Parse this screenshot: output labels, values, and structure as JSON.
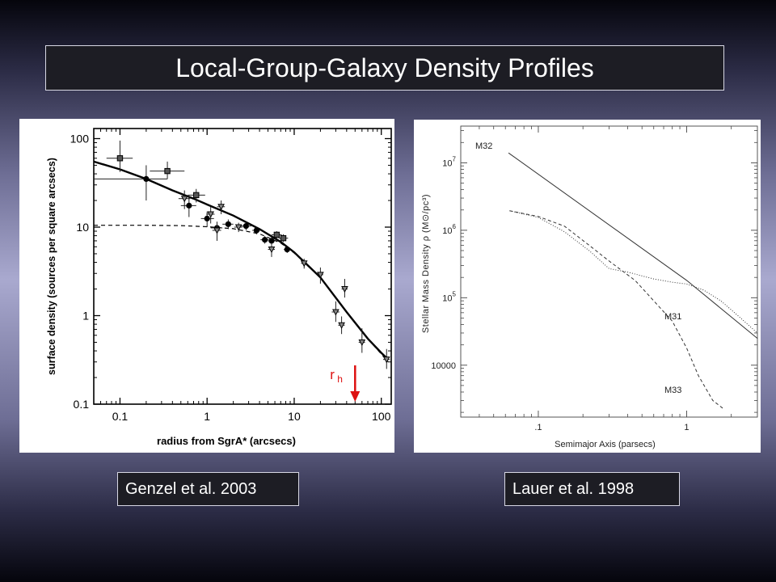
{
  "slide": {
    "title": "Local-Group-Galaxy Density Profiles"
  },
  "captions": {
    "left": "Genzel et al. 2003",
    "right": "Lauer et al. 1998"
  },
  "colors": {
    "annotation": "#dd1111",
    "title_bg": "#1d1d24"
  },
  "chart_data": [
    {
      "type": "scatter",
      "title": "",
      "xlabel": "radius from SgrA* (arcsecs)",
      "ylabel": "surface density (sources per square arcsecs)",
      "xscale": "log",
      "yscale": "log",
      "xlim": [
        0.05,
        130
      ],
      "ylim": [
        0.1,
        130
      ],
      "xticks": [
        0.1,
        1,
        10,
        100
      ],
      "xtick_labels": [
        "0.1",
        "1",
        "10",
        "100"
      ],
      "yticks": [
        0.1,
        1,
        10,
        100
      ],
      "ytick_labels": [
        "0.1",
        "1",
        "10",
        "100"
      ],
      "grid": false,
      "annotation": {
        "label_main": "r",
        "label_sub": "h",
        "x": 50
      },
      "series": [
        {
          "marker": "square",
          "points": [
            {
              "x": 0.1,
              "y": 60,
              "xerr": [
                0.07,
                0.14
              ],
              "yerr": [
                42,
                95
              ]
            },
            {
              "x": 0.35,
              "y": 43,
              "xerr": [
                0.22,
                0.55
              ],
              "yerr": [
                35,
                55
              ]
            },
            {
              "x": 0.75,
              "y": 23,
              "xerr": [
                0.6,
                0.95
              ],
              "yerr": [
                19,
                27
              ]
            },
            {
              "x": 6.3,
              "y": 8.2,
              "xerr": [
                5.5,
                7.2
              ],
              "yerr": [
                7.4,
                9
              ]
            },
            {
              "x": 7.5,
              "y": 7.5,
              "xerr": [
                6.6,
                8.5
              ],
              "yerr": [
                6.8,
                8.3
              ]
            }
          ]
        },
        {
          "marker": "circle",
          "points": [
            {
              "x": 0.2,
              "y": 35,
              "xerr": [
                0.05,
                0.35
              ],
              "yerr": [
                20,
                50
              ]
            },
            {
              "x": 0.62,
              "y": 17.5,
              "xerr": [
                0.5,
                0.75
              ],
              "yerr": [
                13,
                22
              ]
            },
            {
              "x": 1.0,
              "y": 12.5,
              "xerr": [
                0.85,
                1.2
              ],
              "yerr": [
                10,
                15
              ]
            },
            {
              "x": 1.3,
              "y": 9.8,
              "xerr": [
                1.1,
                1.5
              ],
              "yerr": [
                8.2,
                11.5
              ]
            },
            {
              "x": 1.75,
              "y": 10.8,
              "xerr": [
                1.5,
                2.0
              ],
              "yerr": [
                9.5,
                12.2
              ]
            },
            {
              "x": 2.8,
              "y": 10.3,
              "xerr": [
                2.4,
                3.2
              ],
              "yerr": [
                9.2,
                11.4
              ]
            },
            {
              "x": 3.7,
              "y": 9.2,
              "xerr": [
                3.3,
                4.1
              ],
              "yerr": [
                8.3,
                10.1
              ]
            },
            {
              "x": 4.6,
              "y": 7.2,
              "xerr": [
                4.1,
                5.1
              ],
              "yerr": [
                6.5,
                7.9
              ]
            },
            {
              "x": 5.5,
              "y": 7.0,
              "xerr": [
                5.0,
                6.0
              ],
              "yerr": [
                6.3,
                7.7
              ]
            },
            {
              "x": 8.3,
              "y": 5.6,
              "xerr": [
                7.6,
                9.0
              ],
              "yerr": [
                5.1,
                6.1
              ]
            }
          ]
        },
        {
          "marker": "triangle-down",
          "points": [
            {
              "x": 0.55,
              "y": 21,
              "xerr": [
                0.47,
                0.64
              ],
              "yerr": [
                16,
                26
              ]
            },
            {
              "x": 1.45,
              "y": 17,
              "xerr": [
                1.3,
                1.6
              ],
              "yerr": [
                14,
                20
              ]
            },
            {
              "x": 1.1,
              "y": 14,
              "xerr": [
                0.98,
                1.22
              ],
              "yerr": [
                11,
                17
              ]
            },
            {
              "x": 1.3,
              "y": 9.2,
              "xerr": [
                1.15,
                1.45
              ],
              "yerr": [
                7,
                11.5
              ]
            },
            {
              "x": 2.3,
              "y": 10,
              "xerr": [
                2.05,
                2.55
              ],
              "yerr": [
                8.8,
                11.2
              ]
            },
            {
              "x": 5.5,
              "y": 5.6,
              "xerr": [
                5.0,
                6.0
              ],
              "yerr": [
                4.6,
                6.6
              ]
            },
            {
              "x": 13,
              "y": 3.9,
              "xerr": [
                12,
                14
              ],
              "yerr": [
                3.4,
                4.4
              ]
            },
            {
              "x": 20,
              "y": 2.9,
              "xerr": [
                18.5,
                21.5
              ],
              "yerr": [
                2.3,
                3.5
              ]
            },
            {
              "x": 38,
              "y": 2.0,
              "xerr": [
                35,
                41
              ],
              "yerr": [
                1.6,
                2.6
              ]
            },
            {
              "x": 30,
              "y": 1.1,
              "xerr": [
                27,
                33
              ],
              "yerr": [
                0.85,
                1.45
              ]
            },
            {
              "x": 35,
              "y": 0.78,
              "xerr": [
                32,
                38
              ],
              "yerr": [
                0.62,
                0.98
              ]
            },
            {
              "x": 60,
              "y": 0.5,
              "xerr": [
                55,
                65
              ],
              "yerr": [
                0.38,
                0.72
              ]
            },
            {
              "x": 115,
              "y": 0.32,
              "xerr": [
                105,
                125
              ],
              "yerr": [
                0.25,
                0.42
              ]
            }
          ]
        }
      ],
      "curves": [
        {
          "style": "solid",
          "points": [
            [
              0.05,
              55
            ],
            [
              0.1,
              45
            ],
            [
              0.2,
              35
            ],
            [
              0.4,
              26
            ],
            [
              0.7,
              21
            ],
            [
              1,
              18
            ],
            [
              2,
              13.5
            ],
            [
              4,
              9.5
            ],
            [
              7,
              6.8
            ],
            [
              10,
              5.2
            ],
            [
              20,
              2.7
            ],
            [
              40,
              1.1
            ],
            [
              70,
              0.55
            ],
            [
              100,
              0.38
            ],
            [
              120,
              0.32
            ]
          ]
        },
        {
          "style": "dashed",
          "points": [
            [
              0.05,
              10.5
            ],
            [
              0.2,
              10.5
            ],
            [
              0.5,
              10.4
            ],
            [
              1,
              10.1
            ],
            [
              2,
              9.6
            ],
            [
              4,
              8.4
            ],
            [
              7,
              6.6
            ],
            [
              10,
              5.1
            ],
            [
              20,
              2.7
            ],
            [
              40,
              1.1
            ],
            [
              70,
              0.55
            ],
            [
              120,
              0.3
            ]
          ]
        }
      ]
    },
    {
      "type": "line",
      "title": "",
      "xlabel": "Semimajor Axis (parsecs)",
      "ylabel": "Stellar Mass Density ρ (M⊙/pc³)",
      "xscale": "log",
      "yscale": "log",
      "xlim": [
        0.03,
        3.0
      ],
      "ylim": [
        1700,
        35000000
      ],
      "xticks": [
        0.1,
        1
      ],
      "xtick_labels": [
        ".1",
        "1"
      ],
      "yticks": [
        10000,
        100000,
        1000000,
        10000000
      ],
      "ytick_labels": [
        "10000",
        "10^5",
        "10^6",
        "10^7"
      ],
      "grid": false,
      "series": [
        {
          "name": "M32",
          "style": "solid",
          "points": [
            [
              0.063,
              14000000
            ],
            [
              1.0,
              181000
            ],
            [
              3.0,
              25000
            ]
          ]
        },
        {
          "name": "M31",
          "style": "dotted",
          "points": [
            [
              0.064,
              1950000
            ],
            [
              0.1,
              1550000
            ],
            [
              0.15,
              950000
            ],
            [
              0.22,
              500000
            ],
            [
              0.3,
              270000
            ],
            [
              0.4,
              240000
            ],
            [
              0.6,
              190000
            ],
            [
              0.8,
              170000
            ],
            [
              1.0,
              160000
            ],
            [
              1.3,
              130000
            ],
            [
              1.7,
              90000
            ],
            [
              2.2,
              55000
            ],
            [
              3.0,
              30000
            ]
          ]
        },
        {
          "name": "M33",
          "style": "dashed",
          "points": [
            [
              0.064,
              1950000
            ],
            [
              0.1,
              1600000
            ],
            [
              0.15,
              1150000
            ],
            [
              0.22,
              600000
            ],
            [
              0.3,
              350000
            ],
            [
              0.45,
              180000
            ],
            [
              0.6,
              90000
            ],
            [
              0.8,
              45000
            ],
            [
              1.0,
              18000
            ],
            [
              1.2,
              7000
            ],
            [
              1.5,
              3000
            ],
            [
              1.8,
              2200
            ]
          ]
        }
      ]
    }
  ]
}
